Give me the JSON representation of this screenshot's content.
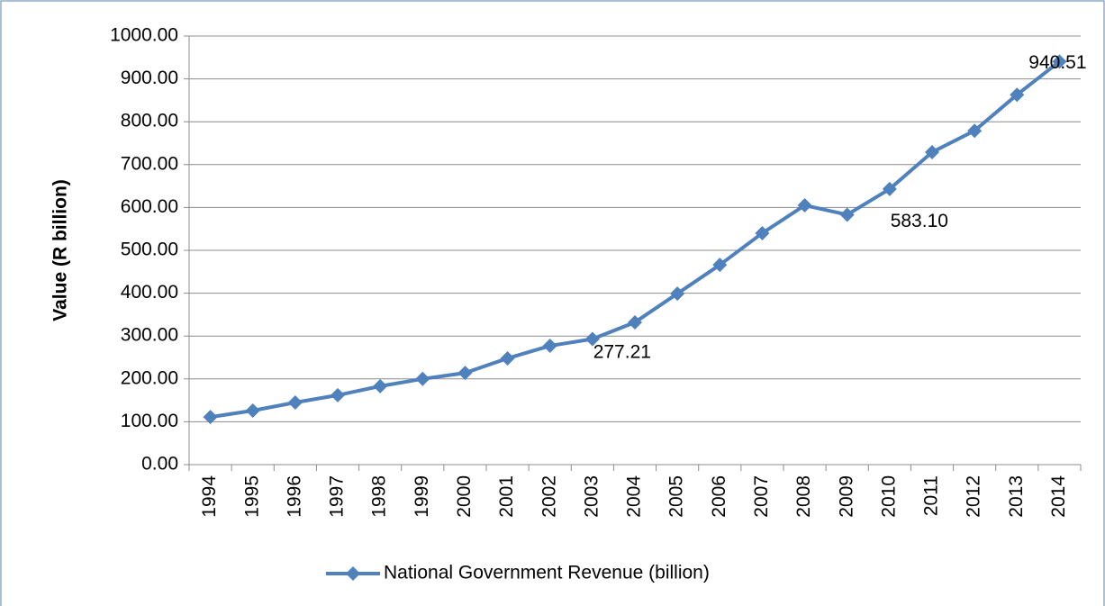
{
  "chart_data": {
    "type": "line",
    "y_axis_label": "Value (R billion)",
    "categories": [
      "1994",
      "1995",
      "1996",
      "1997",
      "1998",
      "1999",
      "2000",
      "2001",
      "2002",
      "2003",
      "2004",
      "2005",
      "2006",
      "2007",
      "2008",
      "2009",
      "2010",
      "2011",
      "2012",
      "2013",
      "2014"
    ],
    "series": [
      {
        "name": "National Government Revenue (billion)",
        "color": "#4f81bd",
        "values": [
          111,
          126,
          145,
          162,
          183,
          200,
          214,
          248,
          277.21,
          293,
          332,
          399,
          466,
          540,
          605,
          583.1,
          643,
          729,
          779,
          863,
          940.51
        ],
        "value_labels": [
          null,
          null,
          null,
          null,
          null,
          null,
          null,
          null,
          "277.21",
          null,
          null,
          null,
          null,
          null,
          null,
          "583.10",
          null,
          null,
          null,
          null,
          "940.51"
        ]
      }
    ],
    "ylim": [
      0,
      1000
    ],
    "yticks": [
      {
        "value": 0,
        "label": "0.00"
      },
      {
        "value": 100,
        "label": "100.00"
      },
      {
        "value": 200,
        "label": "200.00"
      },
      {
        "value": 300,
        "label": "300.00"
      },
      {
        "value": 400,
        "label": "400.00"
      },
      {
        "value": 500,
        "label": "500.00"
      },
      {
        "value": 600,
        "label": "600.00"
      },
      {
        "value": 700,
        "label": "700.00"
      },
      {
        "value": 800,
        "label": "800.00"
      },
      {
        "value": 900,
        "label": "900.00"
      },
      {
        "value": 1000,
        "label": "1000.00"
      }
    ],
    "grid": true,
    "legend": "bottom"
  }
}
